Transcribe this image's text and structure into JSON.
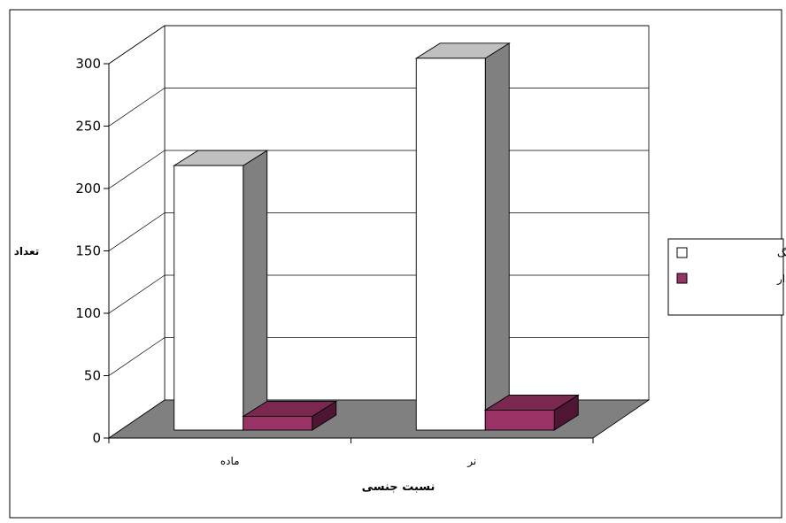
{
  "chart_data": {
    "type": "bar",
    "title": "",
    "xlabel": "نسبت جنسی",
    "ylabel": "تعداد",
    "categories": [
      "ماده",
      "نر"
    ],
    "ylim": [
      0,
      300
    ],
    "yticks": [
      0,
      50,
      100,
      150,
      200,
      250,
      300
    ],
    "ytick_labels": [
      "0",
      "50",
      "100",
      "150",
      "200",
      "250",
      "300"
    ],
    "grid": true,
    "three_d": true,
    "legend_position": "right",
    "series": [
      {
        "name": "نمونه بدون تگ",
        "values": [
          212,
          298
        ],
        "color": "#ffffff"
      },
      {
        "name": "نمونه تگ دار",
        "values": [
          11,
          16
        ],
        "color": "#993366"
      }
    ],
    "colors": {
      "wall": "#ffffff",
      "floor": "#808080",
      "grid": "#000000",
      "tagged_top": "#7a2850",
      "tagged_side": "#4f1634",
      "untagged_top": "#c0c0c0",
      "untagged_side": "#808080"
    }
  }
}
